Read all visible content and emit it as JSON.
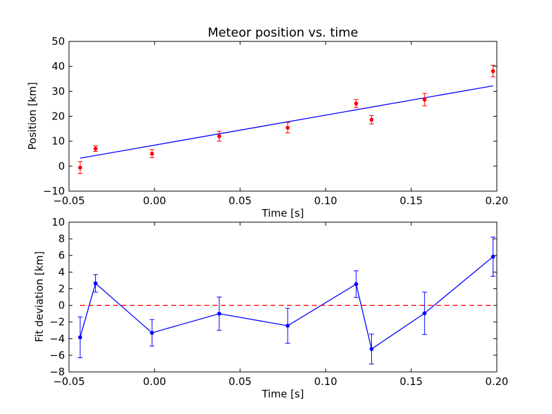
{
  "chart_data": [
    {
      "type": "scatter",
      "title": "Meteor position vs. time",
      "xlabel": "Time [s]",
      "ylabel": "Position [km]",
      "xlim": [
        -0.05,
        0.2
      ],
      "ylim": [
        -10,
        50
      ],
      "x_ticks": [
        -0.05,
        0.0,
        0.05,
        0.1,
        0.15,
        0.2
      ],
      "x_tick_labels": [
        "−0.05",
        "0.00",
        "0.05",
        "0.10",
        "0.15",
        "0.20"
      ],
      "y_ticks": [
        -10,
        0,
        10,
        20,
        30,
        40,
        50
      ],
      "y_tick_labels": [
        "−10",
        "0",
        "10",
        "20",
        "30",
        "40",
        "50"
      ],
      "grid": false,
      "series": [
        {
          "kind": "errorbar-points",
          "color": "#ff0000",
          "x": [
            -0.0435,
            -0.0345,
            -0.0015,
            0.0378,
            0.0778,
            0.1178,
            0.1268,
            0.1578,
            0.1978
          ],
          "y": [
            -0.6,
            7.0,
            5.0,
            12.0,
            15.4,
            25.1,
            18.6,
            26.7,
            38.1
          ],
          "yerr": [
            2.4,
            1.1,
            1.6,
            2.0,
            2.1,
            1.6,
            1.7,
            2.5,
            2.3
          ]
        },
        {
          "kind": "line",
          "color": "#0000ff",
          "x": [
            -0.0435,
            0.1978
          ],
          "y": [
            3.2,
            32.2
          ]
        }
      ]
    },
    {
      "type": "line",
      "title": "",
      "xlabel": "Time [s]",
      "ylabel": "Fit deviation [km]",
      "xlim": [
        -0.05,
        0.2
      ],
      "ylim": [
        -8,
        10
      ],
      "x_ticks": [
        -0.05,
        0.0,
        0.05,
        0.1,
        0.15,
        0.2
      ],
      "x_tick_labels": [
        "−0.05",
        "0.00",
        "0.05",
        "0.10",
        "0.15",
        "0.20"
      ],
      "y_ticks": [
        -8,
        -6,
        -4,
        -2,
        0,
        2,
        4,
        6,
        8,
        10
      ],
      "y_tick_labels": [
        "−8",
        "−6",
        "−4",
        "−2",
        "0",
        "2",
        "4",
        "6",
        "8",
        "10"
      ],
      "grid": false,
      "series": [
        {
          "kind": "errorbar-line",
          "color": "#0000ff",
          "x": [
            -0.0435,
            -0.0345,
            -0.0015,
            0.0378,
            0.0778,
            0.1178,
            0.1268,
            0.1578,
            0.1978
          ],
          "y": [
            -3.85,
            2.65,
            -3.3,
            -1.0,
            -2.45,
            2.55,
            -5.25,
            -0.95,
            5.85
          ],
          "yerr": [
            2.45,
            1.05,
            1.6,
            2.0,
            2.1,
            1.6,
            1.8,
            2.55,
            2.35
          ]
        },
        {
          "kind": "reference-line",
          "color": "#ff0000",
          "style": "dashed",
          "x": [
            -0.0435,
            0.1978
          ],
          "y": [
            0,
            0
          ]
        }
      ]
    }
  ]
}
